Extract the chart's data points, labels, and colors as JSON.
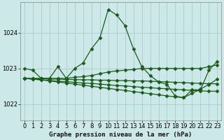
{
  "title": "Graphe pression niveau de la mer (hPa)",
  "bg_color": "#cce8e8",
  "grid_color": "#a8cccc",
  "line_color": "#1a5c1a",
  "xlim": [
    -0.5,
    23.5
  ],
  "ylim": [
    1021.55,
    1024.85
  ],
  "yticks": [
    1022,
    1023,
    1024
  ],
  "xticks": [
    0,
    1,
    2,
    3,
    4,
    5,
    6,
    7,
    8,
    9,
    10,
    11,
    12,
    13,
    14,
    15,
    16,
    17,
    18,
    19,
    20,
    21,
    22,
    23
  ],
  "series": [
    {
      "x": [
        0,
        1,
        2,
        3,
        4,
        5,
        6,
        7,
        8,
        9,
        10,
        11,
        12,
        13,
        14,
        15,
        16,
        17,
        18,
        19,
        20,
        21,
        22,
        23
      ],
      "y": [
        1023.0,
        1022.95,
        1022.72,
        1022.72,
        1023.05,
        1022.72,
        1023.0,
        1023.15,
        1023.55,
        1023.85,
        1024.65,
        1024.5,
        1024.2,
        1023.55,
        1023.05,
        1022.8,
        1022.62,
        1022.55,
        1022.22,
        1022.18,
        1022.4,
        1022.4,
        1022.95,
        1023.2
      ]
    },
    {
      "x": [
        0,
        1,
        2,
        3,
        4,
        5,
        6,
        7,
        8,
        9,
        10,
        11,
        12,
        13,
        14,
        15,
        16,
        17,
        18,
        19,
        20,
        21,
        22,
        23
      ],
      "y": [
        1022.72,
        1022.72,
        1022.72,
        1022.72,
        1022.72,
        1022.72,
        1022.75,
        1022.77,
        1022.8,
        1022.85,
        1022.9,
        1022.93,
        1022.95,
        1022.97,
        1023.0,
        1023.0,
        1023.0,
        1023.0,
        1023.0,
        1023.0,
        1023.0,
        1023.0,
        1023.05,
        1023.1
      ]
    },
    {
      "x": [
        0,
        1,
        2,
        3,
        4,
        5,
        6,
        7,
        8,
        9,
        10,
        11,
        12,
        13,
        14,
        15,
        16,
        17,
        18,
        19,
        20,
        21,
        22,
        23
      ],
      "y": [
        1022.72,
        1022.71,
        1022.71,
        1022.7,
        1022.7,
        1022.69,
        1022.69,
        1022.68,
        1022.68,
        1022.67,
        1022.67,
        1022.66,
        1022.66,
        1022.65,
        1022.65,
        1022.64,
        1022.63,
        1022.62,
        1022.61,
        1022.6,
        1022.59,
        1022.58,
        1022.57,
        1022.57
      ]
    },
    {
      "x": [
        0,
        1,
        2,
        3,
        4,
        5,
        6,
        7,
        8,
        9,
        10,
        11,
        12,
        13,
        14,
        15,
        16,
        17,
        18,
        19,
        20,
        21,
        22,
        23
      ],
      "y": [
        1022.72,
        1022.7,
        1022.68,
        1022.66,
        1022.64,
        1022.63,
        1022.61,
        1022.59,
        1022.58,
        1022.56,
        1022.54,
        1022.52,
        1022.51,
        1022.49,
        1022.47,
        1022.46,
        1022.44,
        1022.43,
        1022.41,
        1022.4,
        1022.38,
        1022.37,
        1022.36,
        1022.36
      ]
    },
    {
      "x": [
        0,
        1,
        2,
        3,
        4,
        5,
        6,
        7,
        8,
        9,
        10,
        11,
        12,
        13,
        14,
        15,
        16,
        17,
        18,
        19,
        20,
        21,
        22,
        23
      ],
      "y": [
        1022.72,
        1022.7,
        1022.68,
        1022.65,
        1022.62,
        1022.59,
        1022.56,
        1022.53,
        1022.5,
        1022.47,
        1022.44,
        1022.41,
        1022.38,
        1022.35,
        1022.32,
        1022.29,
        1022.26,
        1022.23,
        1022.2,
        1022.18,
        1022.3,
        1022.42,
        1022.55,
        1022.7
      ]
    }
  ],
  "marker": "D",
  "markersize": 2.5,
  "linewidth": 0.9,
  "tick_fontsize": 6,
  "title_fontsize": 6.5
}
